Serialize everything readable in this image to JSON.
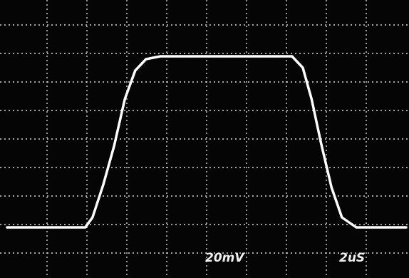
{
  "chart_data": {
    "type": "line",
    "x": [
      0,
      1.96,
      2.14,
      2.41,
      2.68,
      2.95,
      3.21,
      3.48,
      3.84,
      7.14,
      7.41,
      7.63,
      7.86,
      8.13,
      8.39,
      8.75,
      10
    ],
    "series": [
      {
        "color": "#ffffff",
        "values": [
          1.9,
          1.9,
          2.25,
          3.4,
          4.75,
          6.4,
          7.4,
          7.8,
          7.9,
          7.9,
          7.5,
          6.4,
          4.9,
          3.3,
          2.25,
          1.9,
          1.9
        ]
      }
    ],
    "xlim": [
      0,
      10
    ],
    "ylim": [
      0,
      10
    ],
    "xticks": [
      1,
      2,
      3,
      4,
      5,
      6,
      7,
      8,
      9
    ],
    "yticks": [
      1,
      2,
      3,
      4,
      5,
      6,
      7,
      8,
      9
    ],
    "grid": true,
    "annotations": [
      "20mV",
      "2uS"
    ]
  }
}
